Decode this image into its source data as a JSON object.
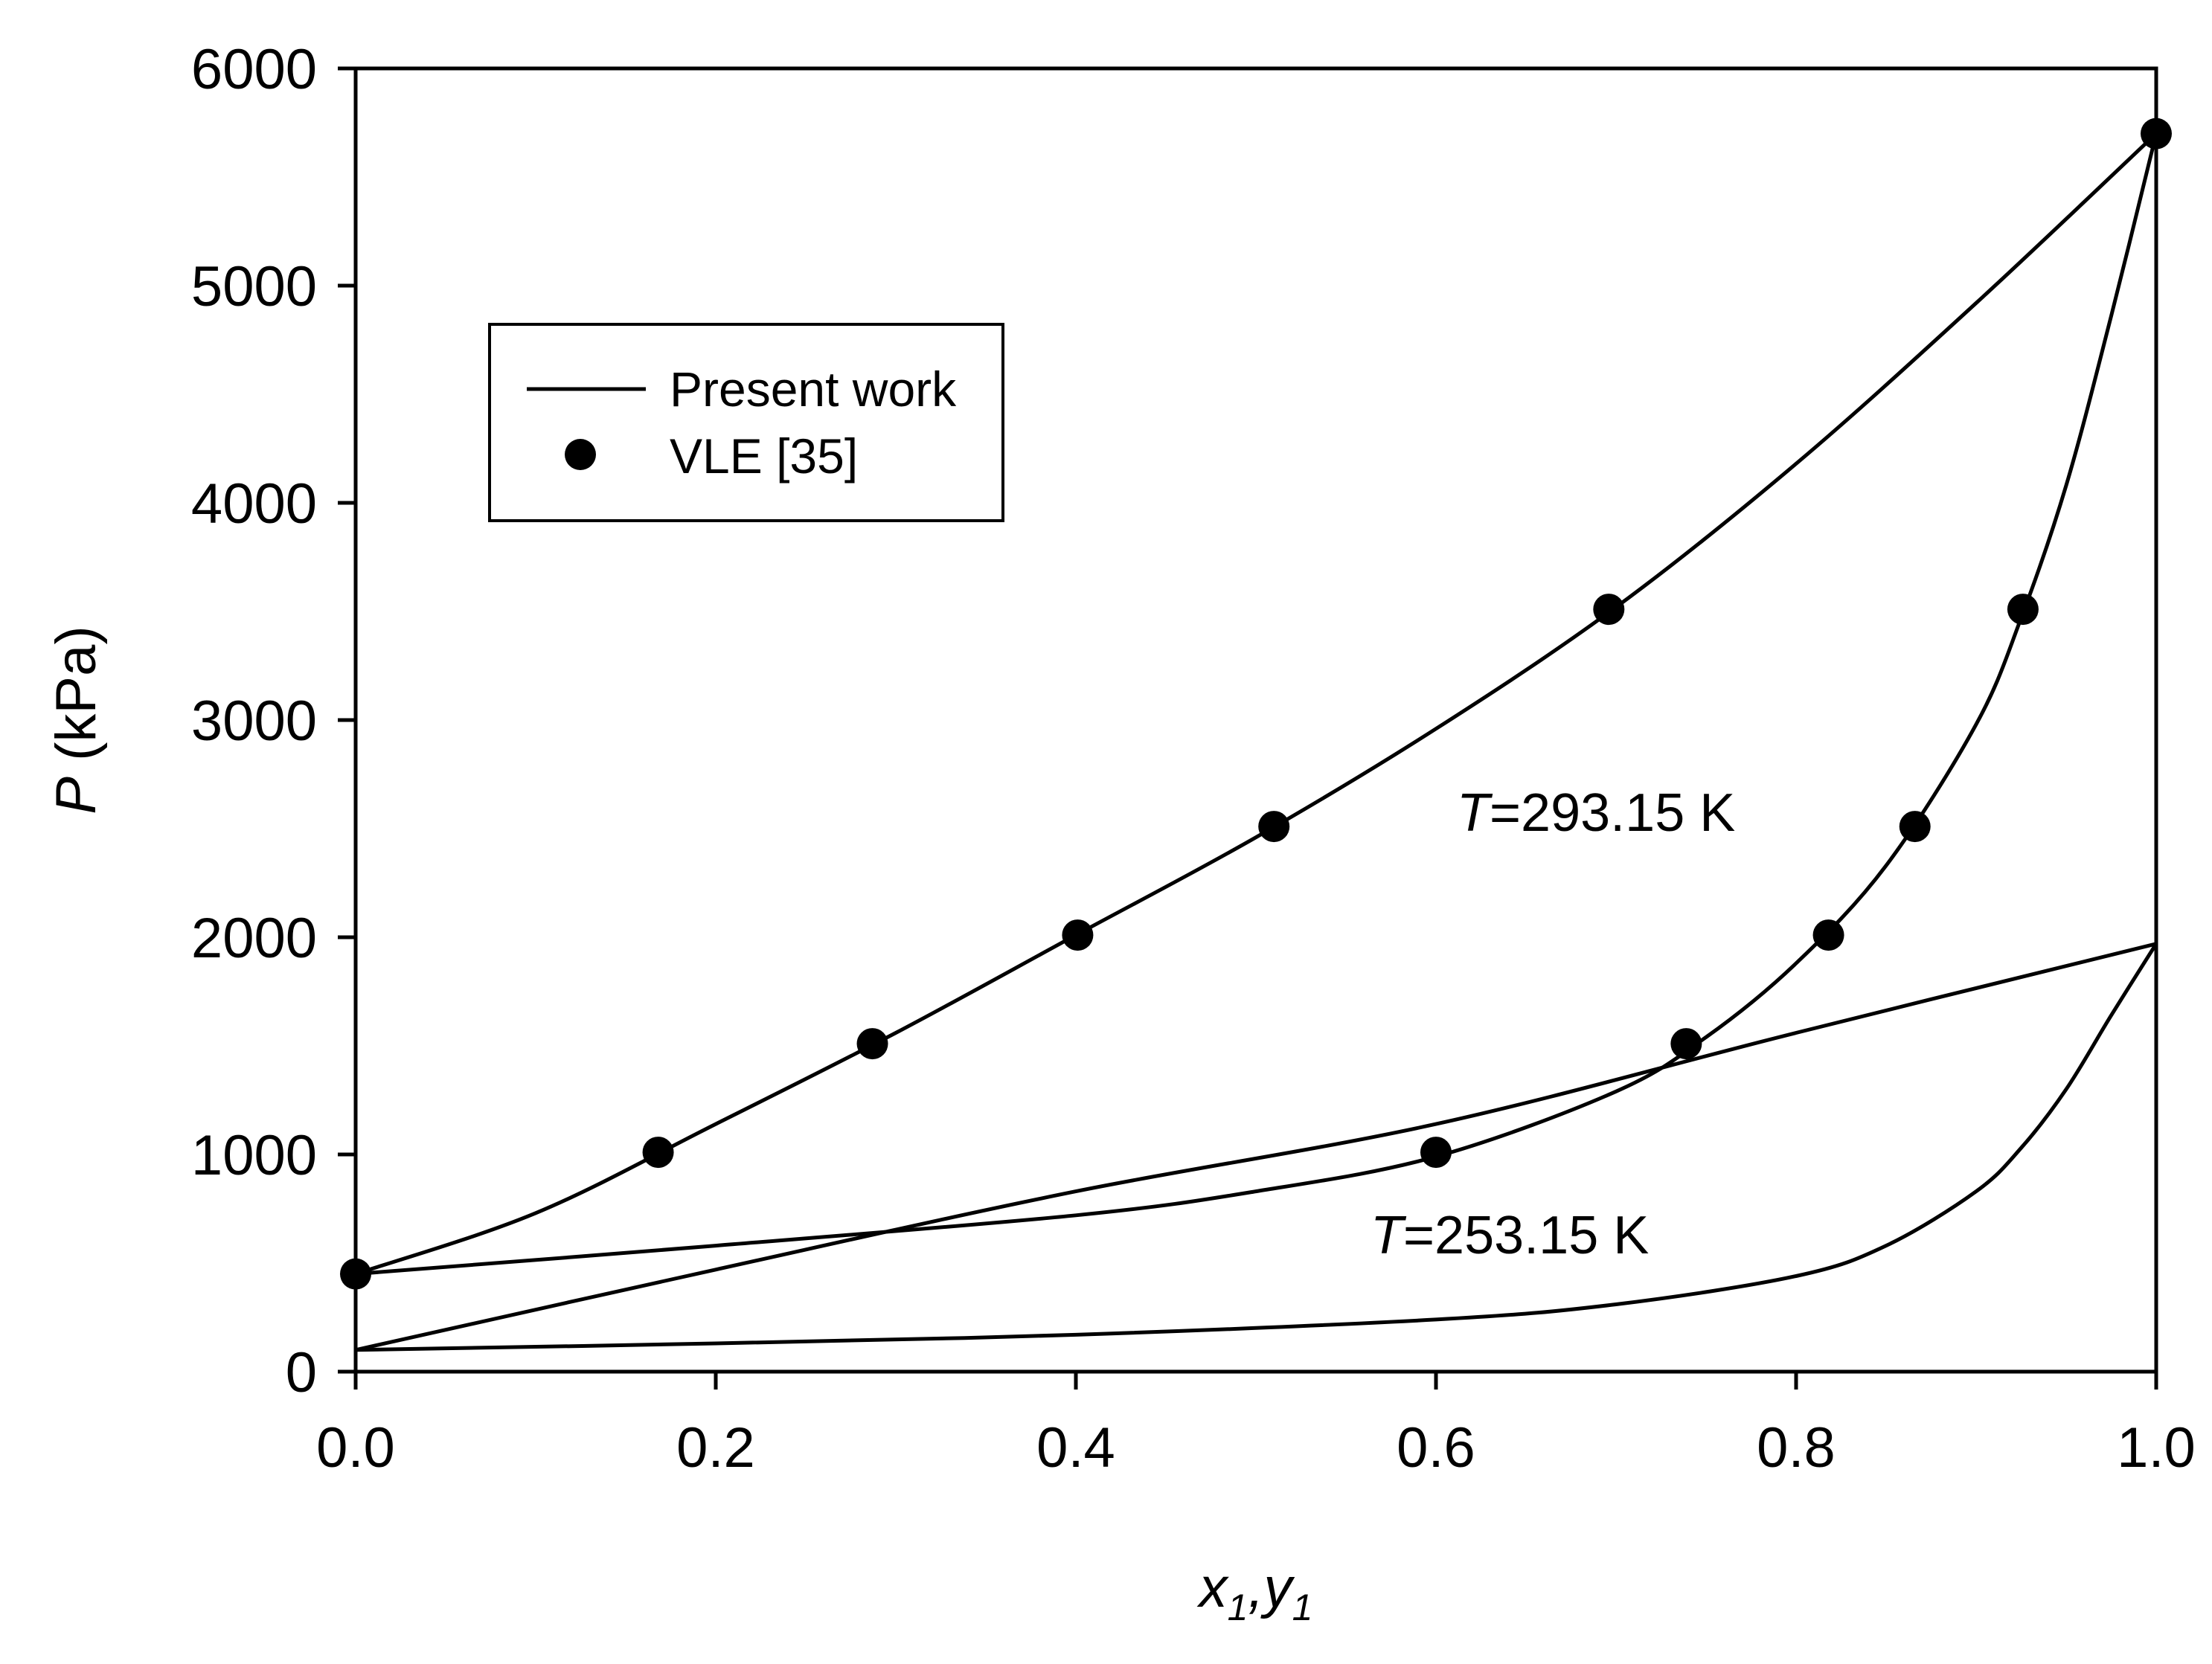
{
  "chart_data": {
    "type": "line",
    "xlabel": {
      "main": "x",
      "sub1": "1",
      "sep": ",y",
      "sub2": "1"
    },
    "ylabel": {
      "var": "P",
      "unit": " (kPa)"
    },
    "xlim": [
      0.0,
      1.0
    ],
    "ylim": [
      0,
      6000
    ],
    "x_ticks": [
      "0.0",
      "0.2",
      "0.4",
      "0.6",
      "0.8",
      "1.0"
    ],
    "y_ticks": [
      "0",
      "1000",
      "2000",
      "3000",
      "4000",
      "5000",
      "6000"
    ],
    "grid": false,
    "legend": {
      "position": "upper-left",
      "entries": [
        {
          "label": "Present work",
          "marker": "line"
        },
        {
          "label": "VLE [35]",
          "marker": "filled-circle"
        }
      ]
    },
    "annotations": [
      {
        "var": "T",
        "text": "=293.15 K",
        "x": 0.6,
        "y": 2500
      },
      {
        "var": "T",
        "text": "=253.15 K",
        "x": 0.56,
        "y": 650
      }
    ],
    "series": [
      {
        "marker": "line",
        "x": [
          0.0,
          0.1,
          0.2,
          0.3,
          0.4,
          0.5,
          0.6,
          0.7,
          0.8,
          0.9,
          1.0
        ],
        "y": [
          450,
          730,
          1140,
          1560,
          2010,
          2460,
          2960,
          3520,
          4180,
          4920,
          5700
        ]
      },
      {
        "marker": "line",
        "x": [
          0.0,
          0.2,
          0.4,
          0.5,
          0.6,
          0.7,
          0.75,
          0.8,
          0.85,
          0.9,
          0.925,
          0.95,
          0.975,
          1.0
        ],
        "y": [
          450,
          580,
          720,
          830,
          990,
          1290,
          1540,
          1880,
          2330,
          2980,
          3470,
          4080,
          4860,
          5700
        ]
      },
      {
        "marker": "line",
        "x": [
          0.0,
          0.2,
          0.4,
          0.6,
          0.8,
          1.0
        ],
        "y": [
          100,
          470,
          830,
          1140,
          1560,
          1970
        ]
      },
      {
        "marker": "line",
        "x": [
          0.0,
          0.2,
          0.4,
          0.6,
          0.7,
          0.8,
          0.85,
          0.9,
          0.925,
          0.95,
          0.975,
          1.0
        ],
        "y": [
          100,
          130,
          170,
          240,
          310,
          440,
          580,
          830,
          1030,
          1300,
          1640,
          1970
        ]
      },
      {
        "marker": "filled-circle",
        "x": [
          0.0,
          0.168,
          0.287,
          0.401,
          0.51,
          0.696,
          0.6,
          0.739,
          0.818,
          0.866,
          0.926,
          1.0
        ],
        "y": [
          450,
          1010,
          1510,
          2010,
          2510,
          3510,
          1010,
          1510,
          2010,
          2510,
          3510,
          5700
        ]
      }
    ]
  }
}
